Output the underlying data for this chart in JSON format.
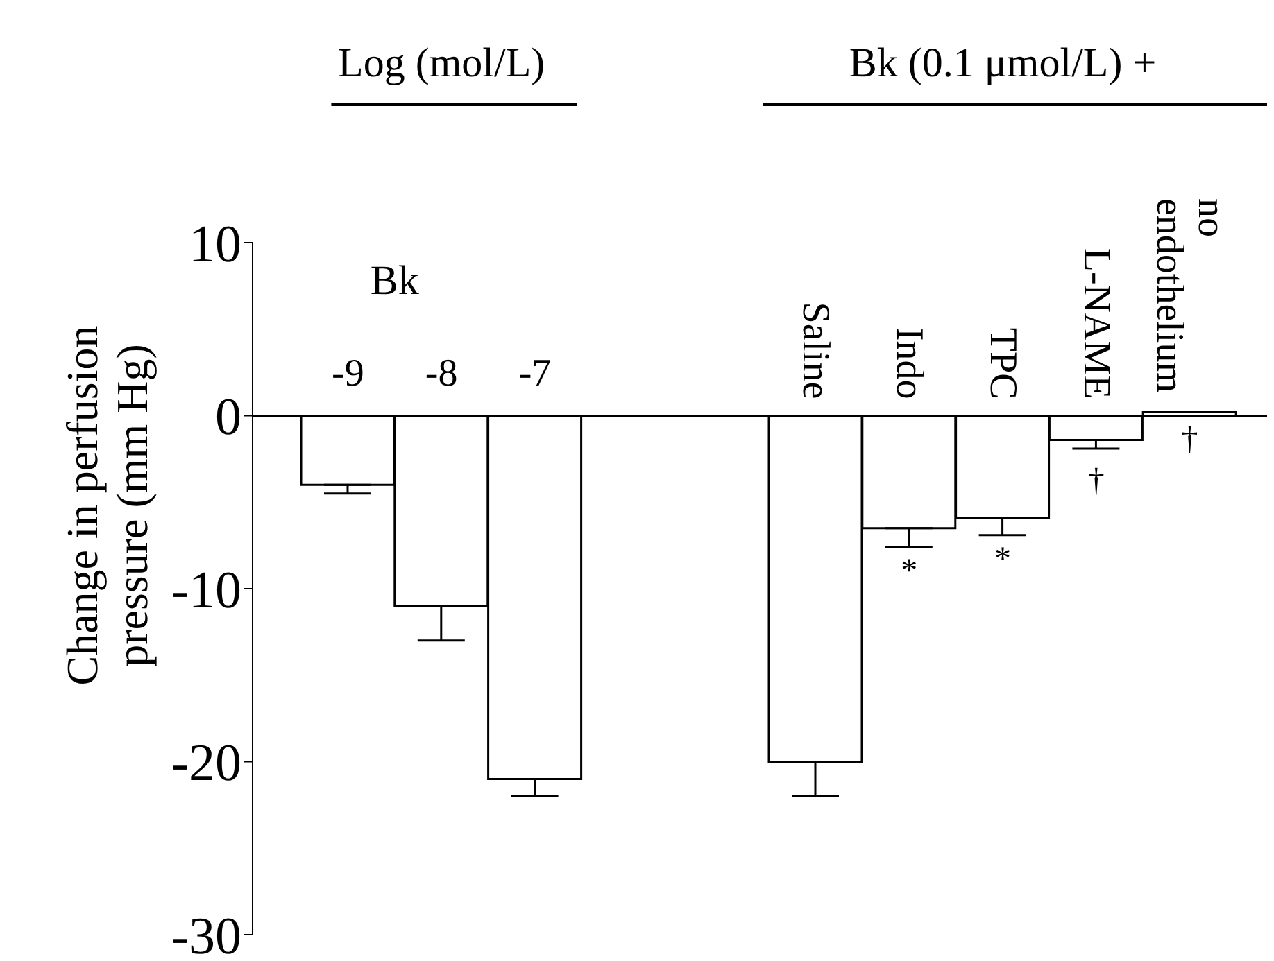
{
  "chart_data": {
    "type": "bar",
    "ylabel": "Change in perfusion pressure (mm Hg)",
    "categories": [
      "-9",
      "-8",
      "-7",
      null,
      null,
      "Saline",
      "Indo",
      "TPC",
      "L-NAME",
      "no endothelium"
    ],
    "values": [
      -4.0,
      -11,
      -21,
      null,
      null,
      -20,
      -6.5,
      -5.9,
      -1.4,
      0.2
    ],
    "errors": [
      [
        -4.5,
        -4.0
      ],
      [
        -13,
        -11
      ],
      [
        -22,
        -21
      ],
      null,
      null,
      [
        -22,
        -20
      ],
      [
        -7.6,
        -6.5
      ],
      [
        -6.9,
        -5.9
      ],
      [
        -1.9,
        -1.4
      ],
      null
    ],
    "color": "#ffffff",
    "ylim": [
      -30,
      10
    ],
    "yticks": [
      -30,
      -20,
      -10,
      0,
      10
    ],
    "annotations": [
      "Log (mol/L)",
      "Bk (0.1 μmol/L) +",
      "Bk",
      "*",
      "*",
      "†",
      "†"
    ]
  }
}
